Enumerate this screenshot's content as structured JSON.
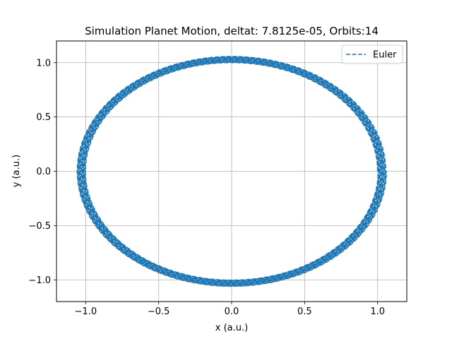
{
  "chart_data": {
    "type": "line",
    "title": "Simulation Planet Motion, deltat: 7.8125e-05, Orbits:14",
    "xlabel": "x (a.u.)",
    "ylabel": "y (a.u.)",
    "xlim": [
      -1.2,
      1.2
    ],
    "ylim": [
      -1.2,
      1.2
    ],
    "xticks": [
      -1.0,
      -0.5,
      0.0,
      0.5,
      1.0
    ],
    "xtick_labels": [
      "−1.0",
      "−0.5",
      "0.0",
      "0.5",
      "1.0"
    ],
    "yticks": [
      -1.0,
      -0.5,
      0.0,
      0.5,
      1.0
    ],
    "ytick_labels": [
      "−1.0",
      "−0.5",
      "0.0",
      "0.5",
      "1.0"
    ],
    "grid": true,
    "legend_position": "top-right",
    "series": [
      {
        "name": "Euler",
        "style": "dashed",
        "color": "#1f77b4",
        "orbits": 14,
        "radius_start": 1.0,
        "radius_end": 1.06,
        "shape": "near-circular orbit spiraling slightly outward"
      }
    ]
  }
}
